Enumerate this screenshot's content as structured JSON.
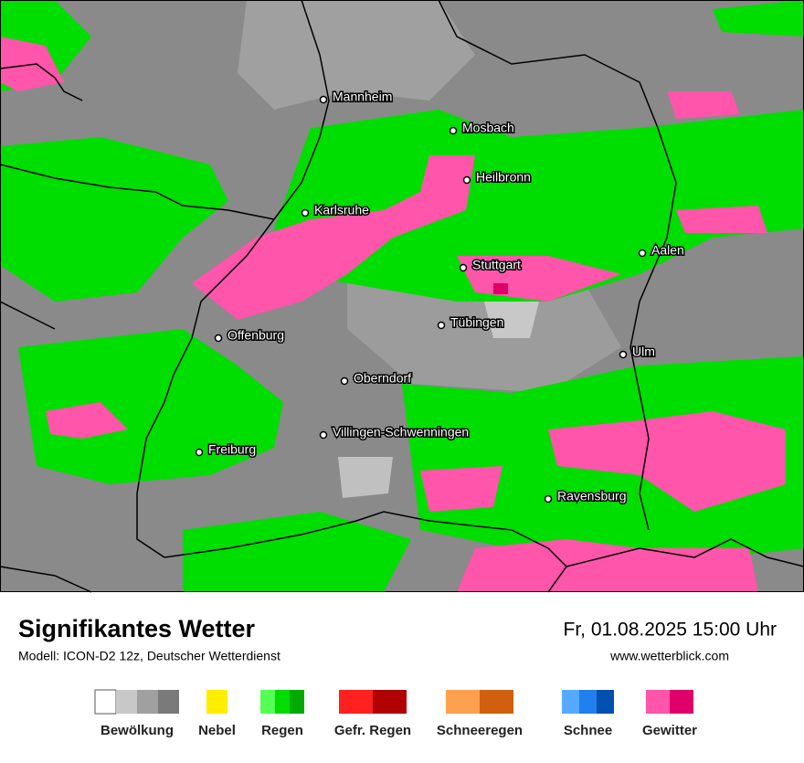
{
  "header": {
    "title": "Signifikantes Wetter",
    "model": "Modell: ICON-D2 12z, Deutscher Wetterdienst",
    "datetime": "Fr, 01.08.2025 15:00 Uhr",
    "website": "www.wetterblick.com"
  },
  "cities": [
    {
      "label": "Mannheim"
    },
    {
      "label": "Mosbach"
    },
    {
      "label": "Heilbronn"
    },
    {
      "label": "Karlsruhe"
    },
    {
      "label": "Aalen"
    },
    {
      "label": "Stuttgart"
    },
    {
      "label": "Tübingen"
    },
    {
      "label": "Offenburg"
    },
    {
      "label": "Ulm"
    },
    {
      "label": "Oberndorf"
    },
    {
      "label": "Villingen-Schwenningen"
    },
    {
      "label": "Freiburg"
    },
    {
      "label": "Ravensburg"
    }
  ],
  "legend": [
    {
      "label": "Bewölkung",
      "colors": [
        "#ffffff",
        "#c8c8c8",
        "#a0a0a0",
        "#7a7a7a"
      ]
    },
    {
      "label": "Nebel",
      "colors": [
        "#ffee00"
      ]
    },
    {
      "label": "Regen",
      "colors": [
        "#55ff55",
        "#00dd00",
        "#00aa00"
      ]
    },
    {
      "label": "Gefr. Regen",
      "colors": [
        "#ff2020",
        "#b00000"
      ]
    },
    {
      "label": "Schneeregen",
      "colors": [
        "#ffa050",
        "#d06010"
      ]
    },
    {
      "label": "Schnee",
      "colors": [
        "#55aaff",
        "#2080ee",
        "#0050b0"
      ]
    },
    {
      "label": "Gewitter",
      "colors": [
        "#ff55aa",
        "#e0006a"
      ]
    }
  ]
}
